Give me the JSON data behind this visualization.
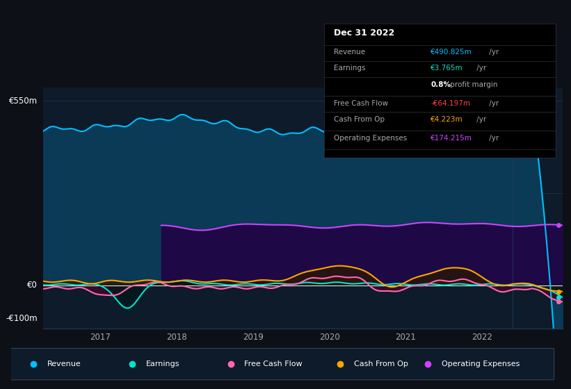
{
  "bg_color": "#0d1117",
  "plot_bg_color": "#0d1b2a",
  "grid_color": "#2a4a6a",
  "ylabel_top": "€550m",
  "ylabel_zero": "€0",
  "ylabel_bottom": "-€100m",
  "ylim": [
    -130,
    590
  ],
  "series": {
    "revenue": {
      "color": "#00bfff",
      "fill_color": "#0a3a55",
      "label": "Revenue"
    },
    "earnings": {
      "color": "#00e5cc",
      "fill_color": "#002222",
      "label": "Earnings"
    },
    "free_cash_flow": {
      "color": "#ff69b4",
      "fill_color": "#4a1030",
      "label": "Free Cash Flow"
    },
    "cash_from_op": {
      "color": "#ffa500",
      "fill_color": "#3a2200",
      "label": "Cash From Op"
    },
    "op_expenses": {
      "color": "#cc44ff",
      "fill_color": "#2a0a50",
      "label": "Operating Expenses"
    }
  },
  "legend": [
    {
      "label": "Revenue",
      "color": "#00bfff"
    },
    {
      "label": "Earnings",
      "color": "#00e5cc"
    },
    {
      "label": "Free Cash Flow",
      "color": "#ff69b4"
    },
    {
      "label": "Cash From Op",
      "color": "#ffa500"
    },
    {
      "label": "Operating Expenses",
      "color": "#cc44ff"
    }
  ],
  "info_box": {
    "date": "Dec 31 2022",
    "rows": [
      {
        "label": "Revenue",
        "value": "€490.825m",
        "suffix": " /yr",
        "vcolor": "#00bfff"
      },
      {
        "label": "Earnings",
        "value": "€3.765m",
        "suffix": " /yr",
        "vcolor": "#00e5cc"
      },
      {
        "label": "",
        "value": "0.8%",
        "suffix": " profit margin",
        "vcolor": "#ffffff"
      },
      {
        "label": "Free Cash Flow",
        "value": "-€64.197m",
        "suffix": " /yr",
        "vcolor": "#ff4444"
      },
      {
        "label": "Cash From Op",
        "value": "€4.223m",
        "suffix": " /yr",
        "vcolor": "#ffa500"
      },
      {
        "label": "Operating Expenses",
        "value": "€174.215m",
        "suffix": " /yr",
        "vcolor": "#cc44ff"
      }
    ]
  }
}
